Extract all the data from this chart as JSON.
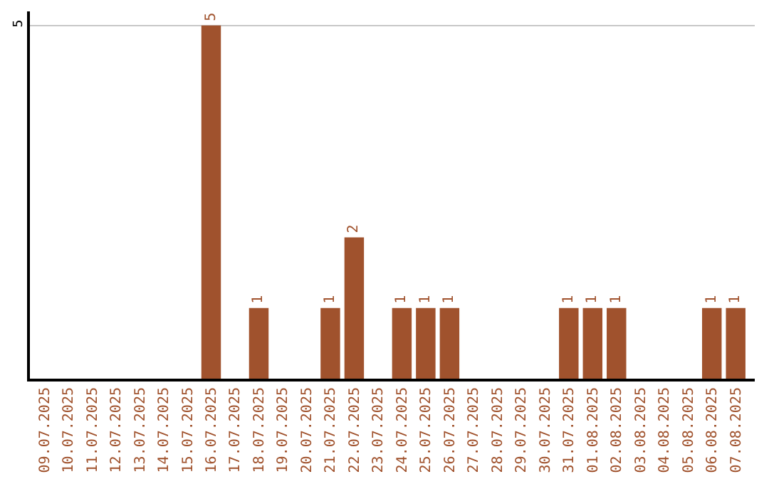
{
  "chart_data": {
    "type": "bar",
    "categories": [
      "09.07.2025",
      "10.07.2025",
      "11.07.2025",
      "12.07.2025",
      "13.07.2025",
      "14.07.2025",
      "15.07.2025",
      "16.07.2025",
      "17.07.2025",
      "18.07.2025",
      "19.07.2025",
      "20.07.2025",
      "21.07.2025",
      "22.07.2025",
      "23.07.2025",
      "24.07.2025",
      "25.07.2025",
      "26.07.2025",
      "27.07.2025",
      "28.07.2025",
      "29.07.2025",
      "30.07.2025",
      "31.07.2025",
      "01.08.2025",
      "02.08.2025",
      "03.08.2025",
      "04.08.2025",
      "05.08.2025",
      "06.08.2025",
      "07.08.2025"
    ],
    "values": [
      0,
      0,
      0,
      0,
      0,
      0,
      0,
      5,
      0,
      1,
      0,
      0,
      1,
      2,
      0,
      1,
      1,
      1,
      0,
      0,
      0,
      0,
      1,
      1,
      1,
      0,
      0,
      0,
      1,
      1
    ],
    "value_labels": [
      null,
      null,
      null,
      null,
      null,
      null,
      null,
      "5",
      null,
      "1",
      null,
      null,
      "1",
      "2",
      null,
      "1",
      "1",
      "1",
      null,
      null,
      null,
      null,
      "1",
      "1",
      "1",
      null,
      null,
      null,
      "1",
      "1"
    ],
    "color": "#a0522d",
    "ylim": [
      0,
      5.2
    ],
    "yticks": [
      5
    ],
    "grid": "y"
  }
}
